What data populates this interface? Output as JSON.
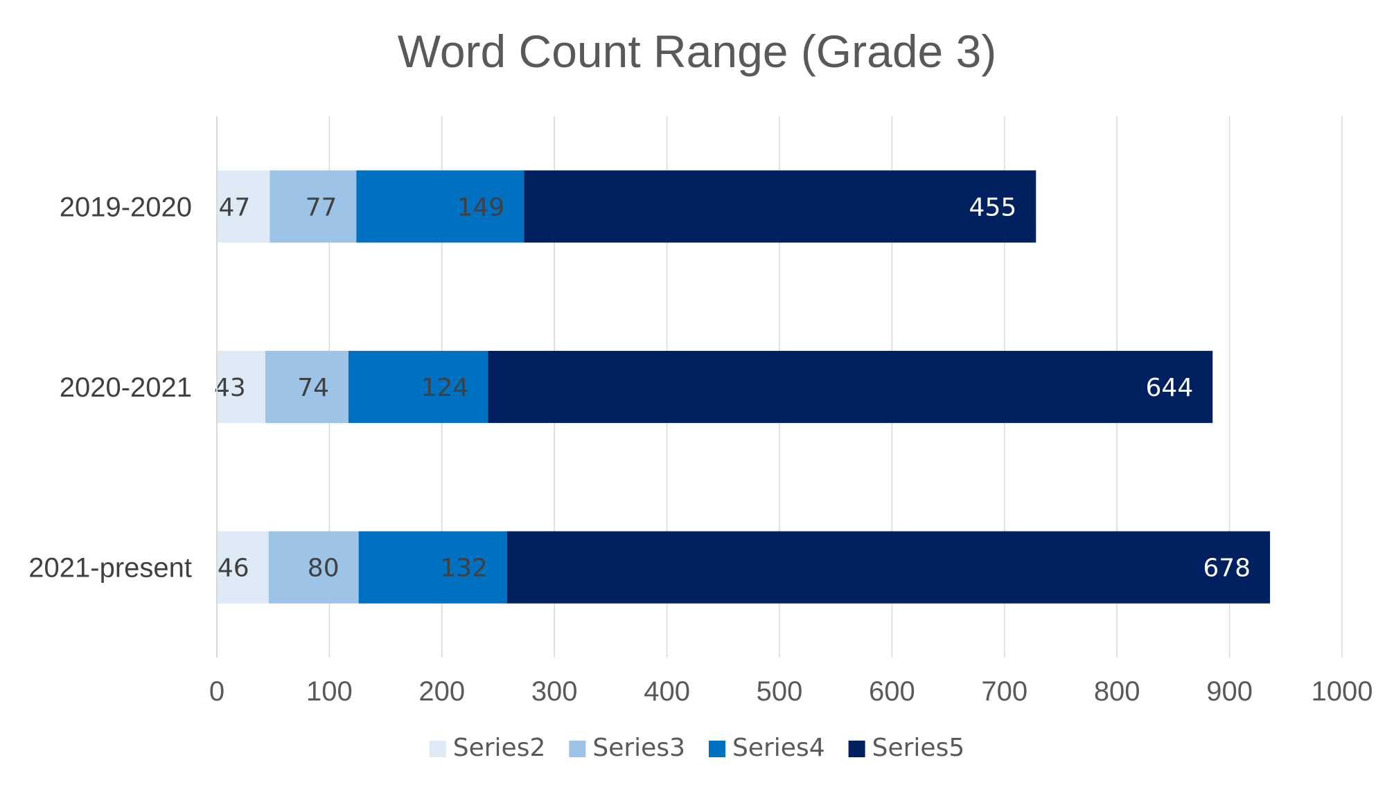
{
  "chart_data": {
    "type": "bar",
    "orientation": "horizontal",
    "stacked": true,
    "title": "Word Count Range (Grade 3)",
    "xlabel": "",
    "ylabel": "",
    "categories": [
      "2019-2020",
      "2020-2021",
      "2021-present"
    ],
    "series": [
      {
        "name": "Series2",
        "color": "#DEEBF7",
        "label_color": "#404040",
        "values": [
          47,
          43,
          46
        ]
      },
      {
        "name": "Series3",
        "color": "#9DC3E6",
        "label_color": "#404040",
        "values": [
          77,
          74,
          80
        ]
      },
      {
        "name": "Series4",
        "color": "#0070C0",
        "label_color": "#404040",
        "values": [
          149,
          124,
          132
        ]
      },
      {
        "name": "Series5",
        "color": "#002060",
        "label_color": "#FFFFFF",
        "values": [
          455,
          644,
          678
        ]
      }
    ],
    "xlim": [
      0,
      1000
    ],
    "x_ticks": [
      0,
      100,
      200,
      300,
      400,
      500,
      600,
      700,
      800,
      900,
      1000
    ],
    "grid": true,
    "legend": "bottom"
  }
}
